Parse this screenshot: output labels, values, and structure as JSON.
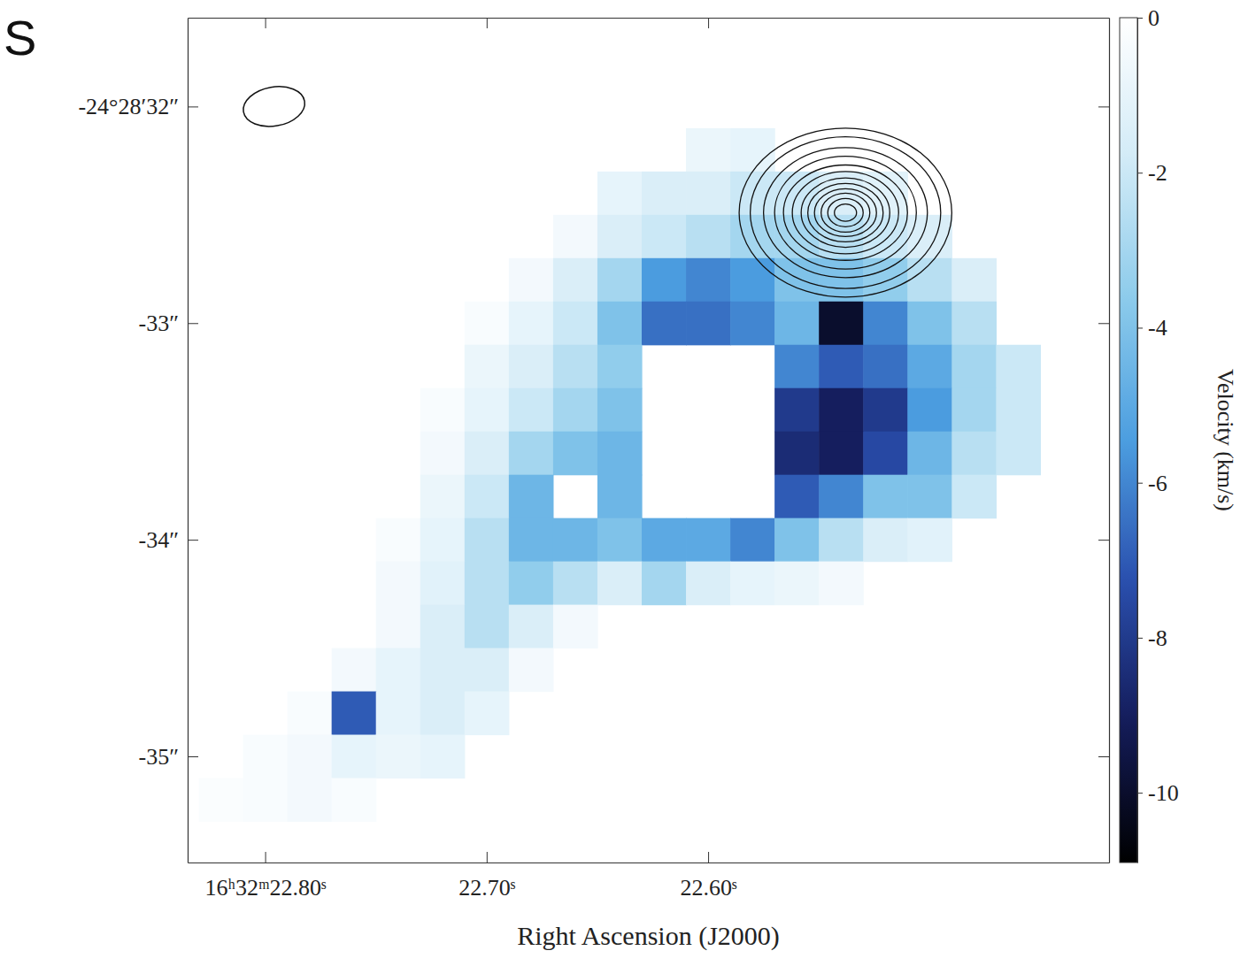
{
  "chart_data": {
    "type": "heatmap",
    "title": "S",
    "x_label": "Right Ascension (J2000)",
    "colorbar_label": "Velocity (km/s)",
    "xlim": [
      22.835,
      22.419
    ],
    "xticks": [
      {
        "value": 22.8,
        "label": "16ʰ32ᵐ22.80ˢ"
      },
      {
        "value": 22.7,
        "label": "22.70ˢ"
      },
      {
        "value": 22.6,
        "label": "22.60ˢ"
      }
    ],
    "ylim": [
      -31.59,
      -35.49
    ],
    "yticks": [
      {
        "value": -32,
        "label": "-24°28′32″"
      },
      {
        "value": -33,
        "label": "-33″"
      },
      {
        "value": -34,
        "label": "-34″"
      },
      {
        "value": -35,
        "label": "-35″"
      }
    ],
    "x": [
      22.82,
      22.8,
      22.78,
      22.76,
      22.74,
      22.72,
      22.7,
      22.68,
      22.66,
      22.64,
      22.62,
      22.6,
      22.58,
      22.56,
      22.54,
      22.52,
      22.5,
      22.48,
      22.46
    ],
    "y": [
      -32.2,
      -32.4,
      -32.6,
      -32.8,
      -33.0,
      -33.2,
      -33.4,
      -33.6,
      -33.8,
      -34.0,
      -34.2,
      -34.4,
      -34.6,
      -34.8,
      -35.0,
      -35.2
    ],
    "z": [
      [
        null,
        null,
        null,
        null,
        null,
        null,
        null,
        null,
        null,
        null,
        null,
        -0.8,
        -1,
        null,
        null,
        null,
        null,
        null,
        null
      ],
      [
        null,
        null,
        null,
        null,
        null,
        null,
        null,
        null,
        null,
        -1,
        -1.5,
        -1.5,
        -2,
        -2,
        -1.5,
        -1.2,
        null,
        null,
        null
      ],
      [
        null,
        null,
        null,
        null,
        null,
        null,
        null,
        null,
        -0.5,
        -1.5,
        -2,
        -2.5,
        -3,
        -3,
        -2.5,
        -2,
        -1.5,
        null,
        null
      ],
      [
        null,
        null,
        null,
        null,
        null,
        null,
        null,
        -0.5,
        -1.5,
        -3,
        -5.5,
        -6,
        -5.5,
        -4,
        -4,
        -3.5,
        -2.5,
        -1.5,
        null
      ],
      [
        null,
        null,
        null,
        null,
        null,
        null,
        -0.3,
        -1,
        -2,
        -4,
        -6.5,
        -6.5,
        -6,
        -4.5,
        -10,
        -6,
        -4,
        -2.5,
        null
      ],
      [
        null,
        null,
        null,
        null,
        null,
        null,
        -0.8,
        -1.5,
        -2.5,
        -3.5,
        null,
        null,
        null,
        -6,
        -7,
        -6.5,
        -5,
        -3,
        -2
      ],
      [
        null,
        null,
        null,
        null,
        null,
        -0.3,
        -1,
        -2,
        -3,
        -4,
        null,
        null,
        null,
        -8,
        -9,
        -8,
        -5.5,
        -3,
        -2
      ],
      [
        null,
        null,
        null,
        null,
        null,
        -0.5,
        -1.5,
        -3,
        -4,
        -4.5,
        null,
        null,
        null,
        -8.5,
        -9,
        -7.5,
        -4.5,
        -2.5,
        -2
      ],
      [
        null,
        null,
        null,
        null,
        null,
        -0.8,
        -2,
        -4.5,
        null,
        -4.5,
        null,
        null,
        null,
        -7,
        -6,
        -4,
        -4,
        -2,
        null
      ],
      [
        null,
        null,
        null,
        null,
        -0.3,
        -1,
        -2.5,
        -4.5,
        -4.5,
        -4,
        -5,
        -5,
        -6,
        -4,
        -2.5,
        -1.5,
        -1.2,
        null,
        null
      ],
      [
        null,
        null,
        null,
        null,
        -0.5,
        -1.2,
        -2.5,
        -3.5,
        -2.5,
        -1.5,
        -3,
        -1.5,
        -1,
        -0.8,
        -0.5,
        null,
        null,
        null,
        null
      ],
      [
        null,
        null,
        null,
        null,
        -0.5,
        -1.5,
        -2.5,
        -1.5,
        -0.5,
        null,
        null,
        null,
        null,
        null,
        null,
        null,
        null,
        null,
        null
      ],
      [
        null,
        null,
        null,
        -0.5,
        -1,
        -1.5,
        -1.5,
        -0.5,
        null,
        null,
        null,
        null,
        null,
        null,
        null,
        null,
        null,
        null,
        null
      ],
      [
        null,
        null,
        -0.3,
        -7,
        -1,
        -1.5,
        -1,
        null,
        null,
        null,
        null,
        null,
        null,
        null,
        null,
        null,
        null,
        null,
        null
      ],
      [
        null,
        -0.3,
        -0.5,
        -1,
        -0.8,
        -1,
        null,
        null,
        null,
        null,
        null,
        null,
        null,
        null,
        null,
        null,
        null,
        null,
        null
      ],
      [
        -0.2,
        -0.3,
        -0.5,
        -0.3,
        null,
        null,
        null,
        null,
        null,
        null,
        null,
        null,
        null,
        null,
        null,
        null,
        null,
        null,
        null
      ]
    ],
    "colorbar": {
      "range": [
        0,
        -10.9
      ],
      "ticks": [
        0,
        -2,
        -4,
        -6,
        -8,
        -10
      ]
    },
    "contours": {
      "center": [
        22.538,
        -32.49
      ],
      "radii": [
        [
          0.048,
          0.39
        ],
        [
          0.043,
          0.35
        ],
        [
          0.037,
          0.3
        ],
        [
          0.032,
          0.26
        ],
        [
          0.028,
          0.22
        ],
        [
          0.024,
          0.19
        ],
        [
          0.02,
          0.16
        ],
        [
          0.017,
          0.135
        ],
        [
          0.014,
          0.11
        ],
        [
          0.011,
          0.09
        ],
        [
          0.008,
          0.065
        ],
        [
          0.005,
          0.04
        ]
      ]
    },
    "beam": {
      "center": [
        22.796,
        -32.0
      ],
      "size": [
        0.028,
        0.18
      ]
    }
  }
}
